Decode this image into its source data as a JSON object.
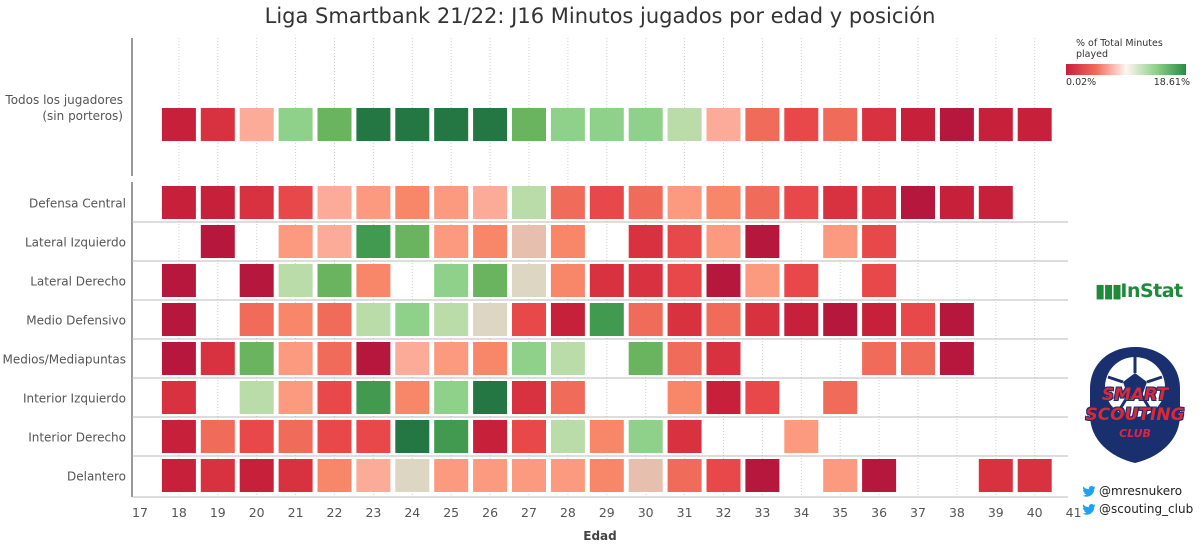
{
  "title": "Liga Smartbank 21/22: J16 Minutos jugados por edad y posición",
  "legend": {
    "title": "% of Total Minutes played",
    "min_label": "0.02%",
    "max_label": "18.61%"
  },
  "brand_instat": "InStat",
  "logo": {
    "line1": "SMART",
    "line2": "SCOUTING",
    "line3": "CLUB"
  },
  "handles": [
    "@mresnukero",
    "@scouting_club"
  ],
  "colors": {
    "palette": [
      "#b5173d",
      "#c7203b",
      "#d8313f",
      "#e8484a",
      "#f16b5a",
      "#f88769",
      "#fb9a7e",
      "#fbab97",
      "#e7bfae",
      "#ddd6c3",
      "#b9dca9",
      "#8fd18a",
      "#6ab35f",
      "#419a4f",
      "#247743"
    ]
  },
  "chart_data": {
    "type": "heatmap",
    "title": "Liga Smartbank 21/22: J16 Minutos jugados por edad y posición",
    "xlabel": "Edad",
    "x_ticks": [
      17,
      18,
      19,
      20,
      21,
      22,
      23,
      24,
      25,
      26,
      27,
      28,
      29,
      30,
      31,
      32,
      33,
      34,
      35,
      36,
      37,
      38,
      39,
      40,
      41
    ],
    "x_range": [
      17,
      41
    ],
    "top_row_label": [
      "Todos los jugadores",
      "(sin porteros)"
    ],
    "rows": [
      "Defensa Central",
      "Lateral Izquierdo",
      "Lateral Derecho",
      "Medio Defensivo",
      "Medios/Mediapuntas",
      "Interior Izquierdo",
      "Interior Derecho",
      "Delantero"
    ],
    "value_scale_note": "cell values are color level index 0 (lowest %) to 14 (highest %)",
    "top_row": [
      {
        "age": 18,
        "v": 1
      },
      {
        "age": 19,
        "v": 2
      },
      {
        "age": 20,
        "v": 7
      },
      {
        "age": 21,
        "v": 11
      },
      {
        "age": 22,
        "v": 12
      },
      {
        "age": 23,
        "v": 14
      },
      {
        "age": 24,
        "v": 14
      },
      {
        "age": 25,
        "v": 14
      },
      {
        "age": 26,
        "v": 14
      },
      {
        "age": 27,
        "v": 12
      },
      {
        "age": 28,
        "v": 11
      },
      {
        "age": 29,
        "v": 11
      },
      {
        "age": 30,
        "v": 11
      },
      {
        "age": 31,
        "v": 10
      },
      {
        "age": 32,
        "v": 7
      },
      {
        "age": 33,
        "v": 4
      },
      {
        "age": 34,
        "v": 3
      },
      {
        "age": 35,
        "v": 4
      },
      {
        "age": 36,
        "v": 2
      },
      {
        "age": 37,
        "v": 1
      },
      {
        "age": 38,
        "v": 0
      },
      {
        "age": 39,
        "v": 1
      },
      {
        "age": 40,
        "v": 1
      }
    ],
    "cells": [
      [
        {
          "age": 18,
          "v": 1
        },
        {
          "age": 19,
          "v": 1
        },
        {
          "age": 20,
          "v": 2
        },
        {
          "age": 21,
          "v": 3
        },
        {
          "age": 22,
          "v": 7
        },
        {
          "age": 23,
          "v": 6
        },
        {
          "age": 24,
          "v": 5
        },
        {
          "age": 25,
          "v": 6
        },
        {
          "age": 26,
          "v": 7
        },
        {
          "age": 27,
          "v": 10
        },
        {
          "age": 28,
          "v": 4
        },
        {
          "age": 29,
          "v": 3
        },
        {
          "age": 30,
          "v": 4
        },
        {
          "age": 31,
          "v": 6
        },
        {
          "age": 32,
          "v": 5
        },
        {
          "age": 33,
          "v": 4
        },
        {
          "age": 34,
          "v": 3
        },
        {
          "age": 35,
          "v": 2
        },
        {
          "age": 36,
          "v": 2
        },
        {
          "age": 37,
          "v": 0
        },
        {
          "age": 38,
          "v": 1
        },
        {
          "age": 39,
          "v": 1
        }
      ],
      [
        {
          "age": 19,
          "v": 0
        },
        {
          "age": 21,
          "v": 6
        },
        {
          "age": 22,
          "v": 7
        },
        {
          "age": 23,
          "v": 13
        },
        {
          "age": 24,
          "v": 12
        },
        {
          "age": 25,
          "v": 6
        },
        {
          "age": 26,
          "v": 5
        },
        {
          "age": 27,
          "v": 8
        },
        {
          "age": 28,
          "v": 5
        },
        {
          "age": 30,
          "v": 2
        },
        {
          "age": 31,
          "v": 3
        },
        {
          "age": 32,
          "v": 6
        },
        {
          "age": 33,
          "v": 0
        },
        {
          "age": 35,
          "v": 6
        },
        {
          "age": 36,
          "v": 3
        }
      ],
      [
        {
          "age": 18,
          "v": 0
        },
        {
          "age": 20,
          "v": 0
        },
        {
          "age": 21,
          "v": 10
        },
        {
          "age": 22,
          "v": 12
        },
        {
          "age": 23,
          "v": 5
        },
        {
          "age": 25,
          "v": 11
        },
        {
          "age": 26,
          "v": 12
        },
        {
          "age": 27,
          "v": 9
        },
        {
          "age": 28,
          "v": 5
        },
        {
          "age": 29,
          "v": 2
        },
        {
          "age": 30,
          "v": 2
        },
        {
          "age": 31,
          "v": 3
        },
        {
          "age": 32,
          "v": 0
        },
        {
          "age": 33,
          "v": 6
        },
        {
          "age": 34,
          "v": 3
        },
        {
          "age": 36,
          "v": 3
        }
      ],
      [
        {
          "age": 18,
          "v": 0
        },
        {
          "age": 20,
          "v": 4
        },
        {
          "age": 21,
          "v": 5
        },
        {
          "age": 22,
          "v": 4
        },
        {
          "age": 23,
          "v": 10
        },
        {
          "age": 24,
          "v": 11
        },
        {
          "age": 25,
          "v": 10
        },
        {
          "age": 26,
          "v": 9
        },
        {
          "age": 27,
          "v": 3
        },
        {
          "age": 28,
          "v": 1
        },
        {
          "age": 29,
          "v": 13
        },
        {
          "age": 30,
          "v": 4
        },
        {
          "age": 31,
          "v": 2
        },
        {
          "age": 32,
          "v": 4
        },
        {
          "age": 33,
          "v": 2
        },
        {
          "age": 34,
          "v": 1
        },
        {
          "age": 35,
          "v": 0
        },
        {
          "age": 36,
          "v": 1
        },
        {
          "age": 37,
          "v": 3
        },
        {
          "age": 38,
          "v": 0
        }
      ],
      [
        {
          "age": 18,
          "v": 0
        },
        {
          "age": 19,
          "v": 2
        },
        {
          "age": 20,
          "v": 12
        },
        {
          "age": 21,
          "v": 6
        },
        {
          "age": 22,
          "v": 4
        },
        {
          "age": 23,
          "v": 0
        },
        {
          "age": 24,
          "v": 7
        },
        {
          "age": 25,
          "v": 6
        },
        {
          "age": 26,
          "v": 5
        },
        {
          "age": 27,
          "v": 11
        },
        {
          "age": 28,
          "v": 10
        },
        {
          "age": 30,
          "v": 12
        },
        {
          "age": 31,
          "v": 4
        },
        {
          "age": 32,
          "v": 2
        },
        {
          "age": 36,
          "v": 4
        },
        {
          "age": 37,
          "v": 4
        },
        {
          "age": 38,
          "v": 0
        }
      ],
      [
        {
          "age": 18,
          "v": 2
        },
        {
          "age": 20,
          "v": 10
        },
        {
          "age": 21,
          "v": 6
        },
        {
          "age": 22,
          "v": 3
        },
        {
          "age": 23,
          "v": 13
        },
        {
          "age": 24,
          "v": 5
        },
        {
          "age": 25,
          "v": 11
        },
        {
          "age": 26,
          "v": 14
        },
        {
          "age": 27,
          "v": 2
        },
        {
          "age": 28,
          "v": 4
        },
        {
          "age": 31,
          "v": 5
        },
        {
          "age": 32,
          "v": 1
        },
        {
          "age": 33,
          "v": 3
        },
        {
          "age": 35,
          "v": 4
        }
      ],
      [
        {
          "age": 18,
          "v": 1
        },
        {
          "age": 19,
          "v": 4
        },
        {
          "age": 20,
          "v": 3
        },
        {
          "age": 21,
          "v": 4
        },
        {
          "age": 22,
          "v": 3
        },
        {
          "age": 23,
          "v": 3
        },
        {
          "age": 24,
          "v": 14
        },
        {
          "age": 25,
          "v": 13
        },
        {
          "age": 26,
          "v": 1
        },
        {
          "age": 27,
          "v": 3
        },
        {
          "age": 28,
          "v": 10
        },
        {
          "age": 29,
          "v": 5
        },
        {
          "age": 30,
          "v": 11
        },
        {
          "age": 31,
          "v": 2
        },
        {
          "age": 34,
          "v": 6
        }
      ],
      [
        {
          "age": 18,
          "v": 1
        },
        {
          "age": 19,
          "v": 2
        },
        {
          "age": 20,
          "v": 1
        },
        {
          "age": 21,
          "v": 2
        },
        {
          "age": 22,
          "v": 5
        },
        {
          "age": 23,
          "v": 7
        },
        {
          "age": 24,
          "v": 9
        },
        {
          "age": 25,
          "v": 6
        },
        {
          "age": 26,
          "v": 6
        },
        {
          "age": 27,
          "v": 6
        },
        {
          "age": 28,
          "v": 6
        },
        {
          "age": 29,
          "v": 5
        },
        {
          "age": 30,
          "v": 8
        },
        {
          "age": 31,
          "v": 4
        },
        {
          "age": 32,
          "v": 3
        },
        {
          "age": 33,
          "v": 0
        },
        {
          "age": 35,
          "v": 6
        },
        {
          "age": 36,
          "v": 0
        },
        {
          "age": 39,
          "v": 2
        },
        {
          "age": 40,
          "v": 2
        }
      ]
    ]
  }
}
